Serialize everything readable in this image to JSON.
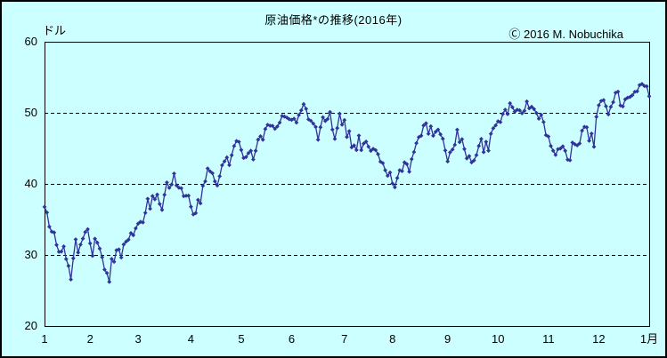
{
  "window": {
    "background": "#CCFFFF",
    "border_color": "#000000"
  },
  "header": {
    "title": "原油価格*の推移(2016年)",
    "copyright": "Ⓒ 2016 M. Nobuchika",
    "unit_label": "ドル"
  },
  "chart_data": {
    "type": "line",
    "title": "原油価格*の推移(2016年)",
    "legend_position": "none",
    "grid": "horizontal-dashed",
    "series_color": "#32329B",
    "marker": "diamond",
    "y_axis": {
      "unit": "ドル",
      "min": 20,
      "max": 60,
      "ticks": [
        60,
        50,
        40,
        30,
        20
      ],
      "gridlines": [
        50,
        40,
        30
      ]
    },
    "x_axis": {
      "note_visible_ticks": [
        "1",
        "2",
        "3",
        "4",
        "5",
        "6",
        "7",
        "8",
        "9",
        "10",
        "11",
        "12",
        "1月"
      ],
      "months": [
        {
          "label": "1",
          "values": [
            36.76,
            35.97,
            33.97,
            33.27,
            33.16,
            31.41,
            30.44,
            30.48,
            31.2,
            29.42,
            28.46,
            26.55,
            29.53,
            32.19,
            30.34,
            31.45,
            32.3,
            33.22,
            33.62
          ]
        },
        {
          "label": "2",
          "values": [
            31.62,
            29.88,
            32.28,
            31.72,
            30.89,
            29.69,
            27.94,
            27.45,
            26.21,
            29.44,
            29.04,
            30.66,
            30.77,
            29.64,
            31.48,
            31.87,
            32.15,
            33.07,
            32.78,
            33.75
          ]
        },
        {
          "label": "3",
          "values": [
            34.4,
            34.66,
            34.57,
            35.92,
            37.9,
            36.5,
            38.29,
            37.84,
            38.5,
            37.18,
            36.34,
            38.46,
            40.2,
            39.44,
            39.91,
            41.45,
            39.79,
            39.46,
            39.39,
            38.28,
            38.32,
            38.34
          ]
        },
        {
          "label": "4",
          "values": [
            36.79,
            35.7,
            35.89,
            37.75,
            37.26,
            39.72,
            40.36,
            42.17,
            41.76,
            41.5,
            40.36,
            39.78,
            41.08,
            42.63,
            43.18,
            43.73,
            42.64,
            44.04,
            45.33,
            46.03,
            45.92
          ]
        },
        {
          "label": "5",
          "values": [
            44.78,
            43.65,
            43.78,
            44.32,
            44.66,
            43.44,
            44.66,
            46.23,
            46.7,
            46.21,
            47.72,
            48.31,
            48.19,
            48.16,
            47.75,
            48.08,
            48.62,
            49.56,
            49.48,
            49.33,
            49.1
          ]
        },
        {
          "label": "6",
          "values": [
            49.01,
            49.17,
            48.62,
            49.69,
            50.36,
            51.23,
            50.56,
            49.07,
            48.88,
            48.49,
            48.01,
            46.21,
            47.98,
            49.37,
            48.85,
            49.13,
            50.11,
            47.64,
            46.33,
            47.85,
            49.88,
            48.33
          ]
        },
        {
          "label": "7",
          "values": [
            48.99,
            46.6,
            47.43,
            45.14,
            45.41,
            44.76,
            46.8,
            44.75,
            45.68,
            45.95,
            45.24,
            44.65,
            44.94,
            44.75,
            44.19,
            43.13,
            42.92,
            41.92,
            41.14,
            41.6
          ]
        },
        {
          "label": "8",
          "values": [
            40.06,
            39.51,
            40.83,
            41.93,
            41.8,
            43.02,
            42.77,
            41.71,
            43.49,
            44.49,
            45.74,
            46.58,
            46.79,
            48.22,
            48.52,
            47.05,
            48.1,
            46.77,
            47.33,
            47.64,
            46.98,
            46.35,
            44.7
          ]
        },
        {
          "label": "9",
          "values": [
            43.16,
            44.44,
            44.83,
            45.5,
            47.62,
            45.88,
            46.29,
            44.9,
            43.58,
            43.91,
            43.03,
            43.3,
            44.05,
            45.34,
            46.32,
            44.48,
            45.93,
            44.67,
            47.05,
            47.83,
            48.24
          ]
        },
        {
          "label": "10",
          "values": [
            48.81,
            48.69,
            49.83,
            50.44,
            49.81,
            51.35,
            50.79,
            50.18,
            50.44,
            50.35,
            49.94,
            50.29,
            51.6,
            50.63,
            50.85,
            50.52,
            49.96,
            49.18,
            49.72,
            48.7,
            46.86
          ]
        },
        {
          "label": "11",
          "values": [
            46.67,
            45.34,
            44.66,
            44.07,
            44.89,
            44.98,
            45.27,
            44.66,
            43.41,
            43.32,
            45.81,
            45.57,
            45.42,
            45.69,
            47.49,
            48.03,
            47.96,
            46.06,
            47.08,
            45.23,
            49.44
          ]
        },
        {
          "label": "12",
          "values": [
            51.06,
            51.68,
            51.79,
            50.93,
            49.77,
            50.84,
            51.5,
            52.83,
            52.98,
            51.04,
            50.9,
            51.9,
            52.12,
            52.23,
            52.49,
            52.95,
            53.02,
            53.9,
            54.06,
            53.77,
            53.72
          ]
        },
        {
          "label": "1月",
          "values": [
            52.33
          ]
        }
      ]
    }
  }
}
